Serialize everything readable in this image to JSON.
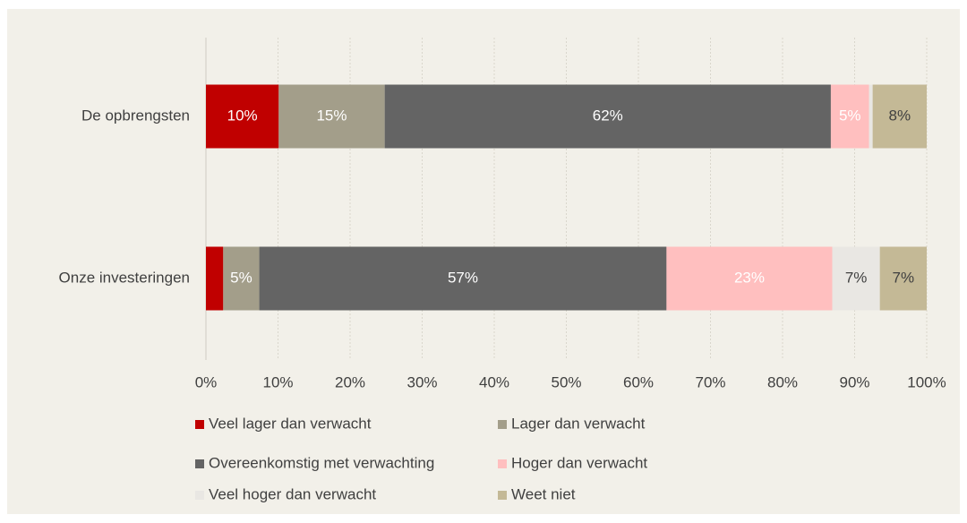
{
  "chart_data": {
    "type": "stacked_barh",
    "categories": [
      "De opbrengsten",
      "Onze investeringen"
    ],
    "series": [
      {
        "name": "Veel lager dan verwacht",
        "color": "#c00000",
        "values": [
          10.1,
          2.4
        ],
        "value_labels": [
          "10%",
          null
        ]
      },
      {
        "name": "Lager dan verwacht",
        "color": "#a39e8a",
        "values": [
          14.7,
          5.0
        ],
        "value_labels": [
          "15%",
          "5%"
        ]
      },
      {
        "name": "Overeenkomstig met verwachting",
        "color": "#646464",
        "values": [
          61.9,
          56.5
        ],
        "value_labels": [
          "62%",
          "57%"
        ]
      },
      {
        "name": "Hoger dan verwacht",
        "color": "#ffbfbf",
        "values": [
          5.3,
          23.0
        ],
        "value_labels": [
          "5%",
          "23%"
        ]
      },
      {
        "name": "Veel hoger dan verwacht",
        "color": "#e9e7e3",
        "values": [
          0.5,
          6.6
        ],
        "value_labels": [
          null,
          "7%"
        ]
      },
      {
        "name": "Weet niet",
        "color": "#c4b996",
        "values": [
          7.5,
          6.5
        ],
        "value_labels": [
          "8%",
          "7%"
        ]
      }
    ],
    "xlim": [
      0,
      100
    ],
    "xticks": [
      {
        "value": 0,
        "label": "0%"
      },
      {
        "value": 10,
        "label": "10%"
      },
      {
        "value": 20,
        "label": "20%"
      },
      {
        "value": 30,
        "label": "30%"
      },
      {
        "value": 40,
        "label": "40%"
      },
      {
        "value": 50,
        "label": "50%"
      },
      {
        "value": 60,
        "label": "60%"
      },
      {
        "value": 70,
        "label": "70%"
      },
      {
        "value": 80,
        "label": "80%"
      },
      {
        "value": 90,
        "label": "90%"
      },
      {
        "value": 100,
        "label": "100%"
      }
    ],
    "grid": true,
    "legend": "bottom"
  }
}
